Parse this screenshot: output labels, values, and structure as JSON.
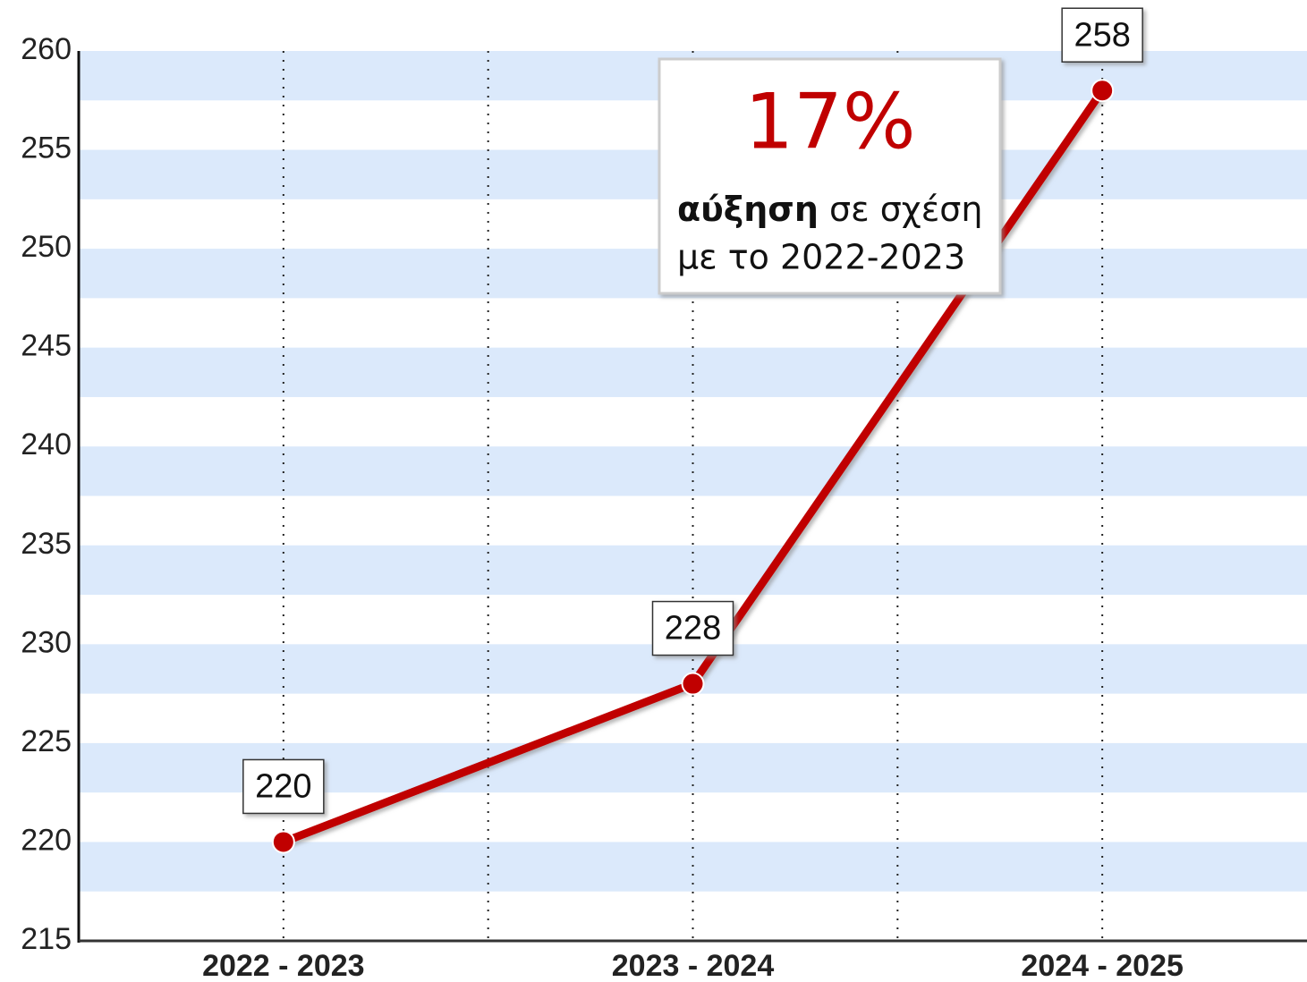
{
  "chart_data": {
    "type": "line",
    "categories": [
      "2022 - 2023",
      "2023 - 2024",
      "2024 - 2025"
    ],
    "series": [
      {
        "color": "#c00000",
        "values": [
          220,
          228,
          258
        ]
      }
    ],
    "ylim": [
      215,
      260
    ],
    "yticks": [
      215,
      220,
      225,
      230,
      235,
      240,
      245,
      250,
      255,
      260
    ],
    "grid": true,
    "annotation": {
      "headline": "17%",
      "bold": "αύξηση",
      "rest": " σε σχέση",
      "line2": "με το 2022-2023"
    }
  }
}
